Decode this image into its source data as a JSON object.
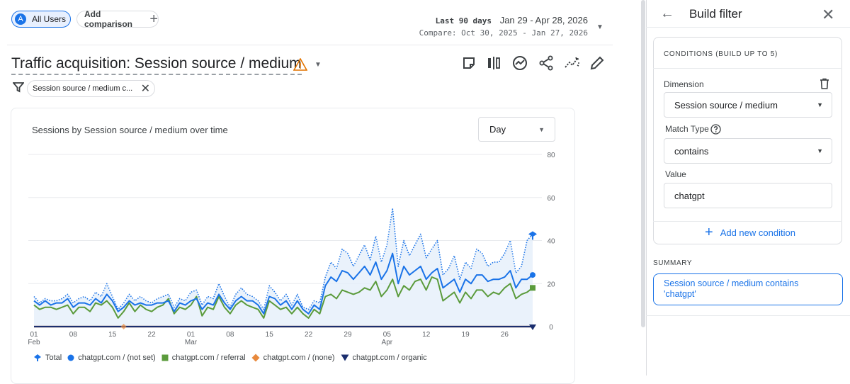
{
  "header": {
    "segment_avatar": "A",
    "segment_label": "All Users",
    "add_comparison_label": "Add comparison",
    "date_range_prefix": "Last 90 days",
    "date_range": "Jan 29 - Apr 28, 2026",
    "compare_range": "Compare: Oct 30, 2025 - Jan 27, 2026"
  },
  "report": {
    "title": "Traffic acquisition: Session source / medium",
    "filter_chip": "Session source / medium c...",
    "toolbar_icons": [
      "note-icon",
      "compare-columns-icon",
      "insights-icon",
      "share-icon",
      "trend-icon",
      "edit-icon"
    ]
  },
  "chart_card": {
    "title": "Sessions by Session source / medium over time",
    "granularity": "Day"
  },
  "chart_data": {
    "type": "line",
    "title": "Sessions by Session source / medium over time",
    "ylim": [
      0,
      80
    ],
    "y_ticks": [
      "80",
      "60",
      "40",
      "20",
      "0"
    ],
    "x_ticks": [
      {
        "label": "01",
        "sub": "Feb",
        "day": 0
      },
      {
        "label": "08",
        "sub": "",
        "day": 7
      },
      {
        "label": "15",
        "sub": "",
        "day": 14
      },
      {
        "label": "22",
        "sub": "",
        "day": 21
      },
      {
        "label": "01",
        "sub": "Mar",
        "day": 28
      },
      {
        "label": "08",
        "sub": "",
        "day": 35
      },
      {
        "label": "15",
        "sub": "",
        "day": 42
      },
      {
        "label": "22",
        "sub": "",
        "day": 49
      },
      {
        "label": "29",
        "sub": "",
        "day": 56
      },
      {
        "label": "05",
        "sub": "Apr",
        "day": 63
      },
      {
        "label": "12",
        "sub": "",
        "day": 70
      },
      {
        "label": "19",
        "sub": "",
        "day": 77
      },
      {
        "label": "26",
        "sub": "",
        "day": 84
      }
    ],
    "grid": true,
    "legend_position": "bottom",
    "series": [
      {
        "name": "Total",
        "color": "#1a73e8",
        "style": "dotted",
        "values": [
          14,
          11,
          13,
          12,
          12,
          13,
          15,
          11,
          13,
          14,
          12,
          16,
          14,
          20,
          14,
          8,
          11,
          15,
          12,
          14,
          12,
          11,
          13,
          14,
          15,
          9,
          13,
          12,
          16,
          17,
          10,
          14,
          13,
          20,
          14,
          9,
          15,
          18,
          15,
          14,
          12,
          8,
          19,
          16,
          12,
          15,
          10,
          15,
          9,
          8,
          12,
          11,
          23,
          30,
          27,
          36,
          34,
          28,
          33,
          38,
          31,
          42,
          30,
          38,
          55,
          28,
          40,
          33,
          38,
          43,
          32,
          36,
          40,
          24,
          27,
          33,
          22,
          30,
          27,
          36,
          34,
          28,
          30,
          30,
          34,
          40,
          25,
          28,
          40,
          43
        ]
      },
      {
        "name": "chatgpt.com / (not set)",
        "color": "#1a73e8",
        "style": "solid",
        "values": [
          12,
          10,
          12,
          10,
          11,
          11,
          13,
          9,
          11,
          11,
          10,
          13,
          11,
          15,
          12,
          7,
          9,
          12,
          10,
          11,
          10,
          10,
          11,
          11,
          12,
          7,
          11,
          10,
          12,
          13,
          8,
          11,
          10,
          15,
          11,
          8,
          12,
          14,
          12,
          12,
          10,
          6,
          14,
          13,
          10,
          12,
          8,
          12,
          8,
          6,
          10,
          8,
          19,
          23,
          21,
          26,
          25,
          22,
          25,
          28,
          24,
          30,
          22,
          26,
          34,
          20,
          28,
          24,
          26,
          28,
          22,
          25,
          27,
          18,
          20,
          22,
          16,
          22,
          20,
          24,
          24,
          21,
          22,
          22,
          23,
          26,
          18,
          22,
          22,
          24
        ]
      },
      {
        "name": "chatgpt.com / referral",
        "color": "#5b9b3c",
        "style": "solid",
        "values": [
          10,
          8,
          9,
          9,
          8,
          9,
          10,
          6,
          9,
          9,
          7,
          11,
          10,
          12,
          9,
          4,
          7,
          11,
          7,
          10,
          8,
          7,
          9,
          10,
          13,
          6,
          9,
          8,
          10,
          14,
          5,
          9,
          8,
          14,
          9,
          6,
          10,
          12,
          10,
          9,
          8,
          4,
          12,
          10,
          8,
          9,
          6,
          9,
          6,
          4,
          8,
          6,
          14,
          15,
          13,
          17,
          16,
          15,
          16,
          18,
          17,
          21,
          14,
          17,
          22,
          14,
          19,
          17,
          21,
          22,
          17,
          23,
          22,
          12,
          14,
          16,
          11,
          16,
          13,
          17,
          17,
          14,
          16,
          15,
          18,
          20,
          13,
          15,
          16,
          18
        ]
      },
      {
        "name": "chatgpt.com / (none)",
        "color": "#e8893c",
        "style": "solid",
        "values": [
          0,
          0,
          0,
          0,
          0,
          0,
          0,
          0,
          0,
          0,
          0,
          0,
          0,
          0,
          0,
          0,
          0,
          0,
          0,
          0,
          0,
          0,
          0,
          0,
          0,
          0,
          0,
          0,
          0,
          0,
          0,
          0,
          0,
          0,
          0,
          0,
          0,
          0,
          0,
          0,
          0,
          0,
          0,
          0,
          0,
          0,
          0,
          0,
          0,
          0,
          0,
          0,
          0,
          0,
          0,
          0,
          0,
          0,
          0,
          0,
          0,
          0,
          0,
          0,
          0,
          0,
          0,
          0,
          0,
          0,
          0,
          0,
          0,
          0,
          0,
          0,
          0,
          0,
          0,
          0,
          0,
          0,
          0,
          0,
          0,
          0,
          0,
          0,
          0,
          0
        ]
      },
      {
        "name": "chatgpt.com / organic",
        "color": "#1b2e6e",
        "style": "solid",
        "values": [
          0,
          0,
          0,
          0,
          0,
          0,
          0,
          0,
          0,
          0,
          0,
          0,
          0,
          0,
          0,
          0,
          0,
          0,
          0,
          0,
          0,
          0,
          0,
          0,
          0,
          0,
          0,
          0,
          0,
          0,
          0,
          0,
          0,
          0,
          0,
          0,
          0,
          0,
          0,
          0,
          0,
          0,
          0,
          0,
          0,
          0,
          0,
          0,
          0,
          0,
          0,
          0,
          0,
          0,
          0,
          0,
          0,
          0,
          0,
          0,
          0,
          0,
          0,
          0,
          0,
          0,
          0,
          0,
          0,
          0,
          0,
          0,
          0,
          0,
          0,
          0,
          0,
          0,
          0,
          0,
          0,
          0,
          0,
          0,
          0,
          0,
          0,
          0,
          0,
          0
        ]
      }
    ]
  },
  "legend": [
    {
      "label": "Total",
      "shape": "diamond-drop",
      "color": "#1a73e8"
    },
    {
      "label": "chatgpt.com / (not set)",
      "shape": "circle",
      "color": "#1a73e8"
    },
    {
      "label": "chatgpt.com / referral",
      "shape": "square",
      "color": "#5b9b3c"
    },
    {
      "label": "chatgpt.com / (none)",
      "shape": "diamond",
      "color": "#e8893c"
    },
    {
      "label": "chatgpt.com / organic",
      "shape": "triangle-down",
      "color": "#1b2e6e"
    }
  ],
  "panel": {
    "title": "Build filter",
    "conditions_header": "CONDITIONS (BUILD UP TO 5)",
    "dimension_label": "Dimension",
    "dimension_value": "Session source / medium",
    "match_type_label": "Match Type",
    "match_type_value": "contains",
    "value_label": "Value",
    "value_value": "chatgpt",
    "add_condition_label": "Add new condition",
    "summary_label": "SUMMARY",
    "summary_text": "Session source / medium contains 'chatgpt'"
  }
}
